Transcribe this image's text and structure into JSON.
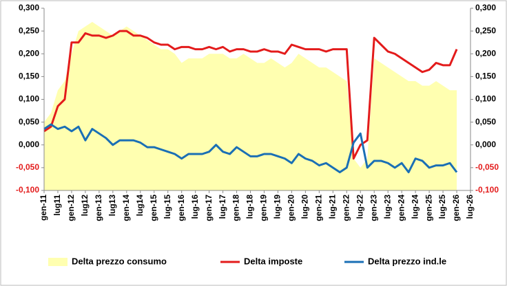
{
  "chart_data": {
    "type": "line",
    "categories": [
      "gen-11",
      null,
      "lug11",
      null,
      "gen-12",
      null,
      "lug12",
      null,
      "gen-13",
      null,
      "lug13",
      null,
      "gen-14",
      null,
      "lug14",
      null,
      "gen-15",
      null,
      "lug-15",
      null,
      "gen-16",
      null,
      "lug-16",
      null,
      "gen-17",
      null,
      "lug-17",
      null,
      "gen-18",
      null,
      "lug-18",
      null,
      "gen-19",
      null,
      "lug-19",
      null,
      "gen-20",
      null,
      "lug-20",
      null,
      "gen-21",
      null,
      "lug-21",
      null,
      "gen-22",
      null,
      "lug-22",
      null,
      "gen-23",
      null,
      "lug-23",
      null,
      "gen-24",
      null,
      "lug-24",
      null,
      "gen-25",
      null,
      "lug-25",
      null,
      "gen-26",
      null,
      "lug-26"
    ],
    "series": [
      {
        "name": "Delta prezzo consumo",
        "type": "area",
        "color": "#ffffb0",
        "values": [
          0.05,
          0.07,
          0.12,
          0.14,
          0.2,
          0.25,
          0.26,
          0.27,
          0.26,
          0.25,
          0.24,
          0.25,
          0.26,
          0.25,
          0.24,
          0.23,
          0.22,
          0.21,
          0.21,
          0.2,
          0.18,
          0.19,
          0.19,
          0.19,
          0.2,
          0.2,
          0.2,
          0.19,
          0.19,
          0.2,
          0.19,
          0.18,
          0.18,
          0.19,
          0.18,
          0.17,
          0.18,
          0.2,
          0.19,
          0.18,
          0.17,
          0.17,
          0.16,
          0.15,
          0.14,
          -0.03,
          -0.05,
          -0.03,
          0.19,
          0.18,
          0.17,
          0.16,
          0.15,
          0.14,
          0.14,
          0.13,
          0.13,
          0.14,
          0.13,
          0.12,
          0.12,
          null,
          null
        ]
      },
      {
        "name": "Delta imposte",
        "type": "line",
        "color": "#e31b1b",
        "values": [
          0.03,
          0.04,
          0.085,
          0.1,
          0.225,
          0.225,
          0.245,
          0.24,
          0.24,
          0.235,
          0.24,
          0.25,
          0.25,
          0.24,
          0.24,
          0.235,
          0.225,
          0.22,
          0.22,
          0.21,
          0.215,
          0.215,
          0.21,
          0.21,
          0.215,
          0.21,
          0.215,
          0.205,
          0.21,
          0.21,
          0.205,
          0.205,
          0.21,
          0.205,
          0.205,
          0.2,
          0.22,
          0.215,
          0.21,
          0.21,
          0.21,
          0.205,
          0.21,
          0.21,
          0.21,
          -0.03,
          0,
          0.01,
          0.235,
          0.22,
          0.205,
          0.2,
          0.19,
          0.18,
          0.17,
          0.16,
          0.165,
          0.18,
          0.175,
          0.175,
          0.21,
          null,
          null
        ]
      },
      {
        "name": "Delta prezzo ind.le",
        "type": "line",
        "axis": "y2",
        "color": "#1a6fb5",
        "values": [
          0.035,
          0.045,
          0.035,
          0.04,
          0.03,
          0.04,
          0.01,
          0.035,
          0.025,
          0.015,
          0,
          0.01,
          0.01,
          0.01,
          0.005,
          -0.005,
          -0.005,
          -0.01,
          -0.015,
          -0.02,
          -0.03,
          -0.02,
          -0.02,
          -0.02,
          -0.015,
          0,
          -0.015,
          -0.02,
          -0.005,
          -0.015,
          -0.025,
          -0.025,
          -0.02,
          -0.02,
          -0.025,
          -0.03,
          -0.04,
          -0.02,
          -0.03,
          -0.035,
          -0.045,
          -0.04,
          -0.05,
          -0.06,
          -0.05,
          0.005,
          0.025,
          -0.05,
          -0.035,
          -0.035,
          -0.04,
          -0.05,
          -0.04,
          -0.06,
          -0.03,
          -0.035,
          -0.05,
          -0.045,
          -0.045,
          -0.04,
          -0.06,
          null,
          null
        ]
      }
    ],
    "ylim": [
      -0.1,
      0.3
    ],
    "yticks": [
      {
        "value": -0.1,
        "label": "-0,100"
      },
      {
        "value": -0.05,
        "label": "-0,050"
      },
      {
        "value": 0,
        "label": "0,000"
      },
      {
        "value": 0.05,
        "label": "0,050"
      },
      {
        "value": 0.1,
        "label": "0,100"
      },
      {
        "value": 0.15,
        "label": "0,150"
      },
      {
        "value": 0.2,
        "label": "0,200"
      },
      {
        "value": 0.25,
        "label": "0,250"
      },
      {
        "value": 0.3,
        "label": "0,300"
      }
    ],
    "y2lim": [
      -0.1,
      0.3
    ],
    "y2ticks": [
      {
        "value": -0.1,
        "label": "-0,100"
      },
      {
        "value": -0.05,
        "label": "-0,050"
      },
      {
        "value": 0,
        "label": "0,000"
      },
      {
        "value": 0.05,
        "label": "0,050"
      },
      {
        "value": 0.1,
        "label": "0,100"
      },
      {
        "value": 0.15,
        "label": "0,150"
      },
      {
        "value": 0.2,
        "label": "0,200"
      },
      {
        "value": 0.25,
        "label": "0,250"
      },
      {
        "value": 0.3,
        "label": "0,300"
      }
    ],
    "grid": false,
    "legend": "bottom"
  }
}
